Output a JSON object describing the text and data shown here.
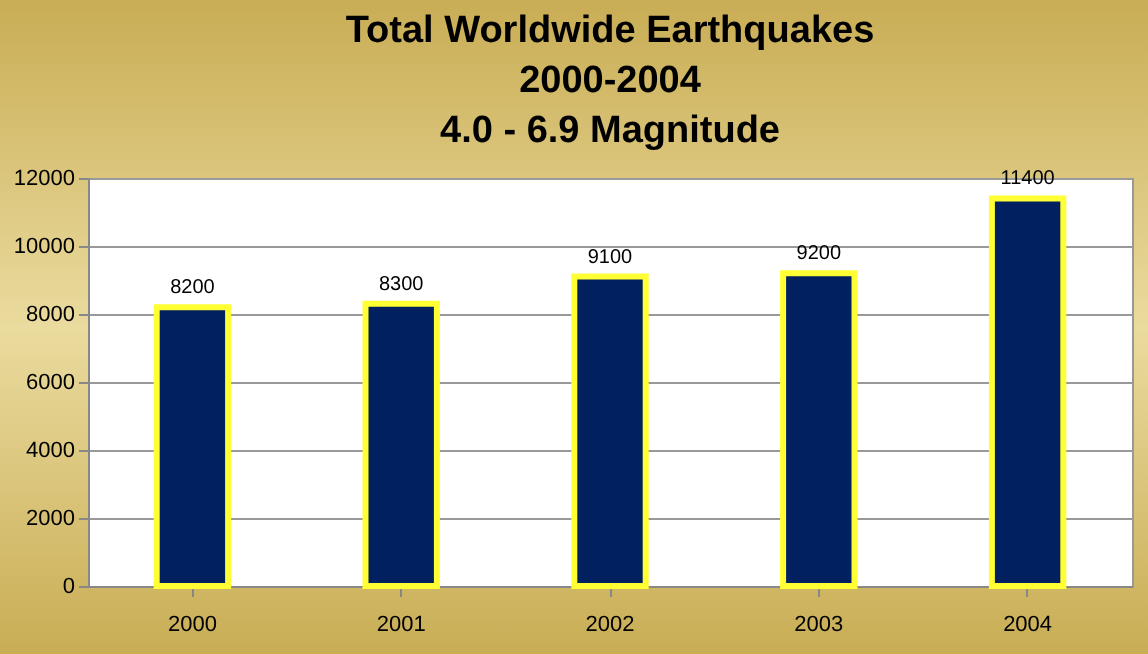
{
  "chart_data": {
    "type": "bar",
    "title": "Total Worldwide Earthquakes\n2000-2004\n4.0 - 6.9 Magnitude",
    "categories": [
      "2000",
      "2001",
      "2002",
      "2003",
      "2004"
    ],
    "values": [
      8200,
      8300,
      9100,
      9200,
      11400
    ],
    "color": "#002060",
    "ylim": [
      0,
      12000
    ],
    "yticks": [
      0,
      2000,
      4000,
      6000,
      8000,
      10000,
      12000
    ],
    "grid": "y",
    "data_labels": true
  }
}
